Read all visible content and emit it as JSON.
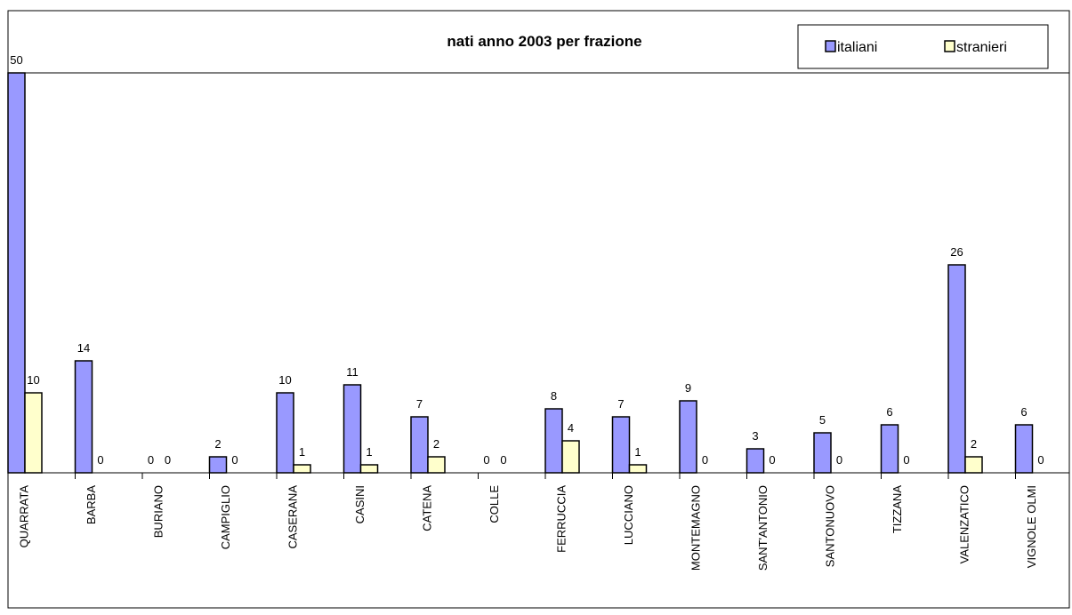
{
  "chart_data": {
    "type": "bar",
    "title": "nati anno 2003 per frazione",
    "xlabel": "",
    "ylabel": "",
    "categories": [
      "QUARRATA",
      "BARBA",
      "BURIANO",
      "CAMPIGLIO",
      "CASERANA",
      "CASINI",
      "CATENA",
      "COLLE",
      "FERRUCCIA",
      "LUCCIANO",
      "MONTEMAGNO",
      "SANT'ANTONIO",
      "SANTONUOVO",
      "TIZZANA",
      "VALENZATICO",
      "VIGNOLE OLMI"
    ],
    "series": [
      {
        "name": "italiani",
        "color": "#9999ff",
        "values": [
          50,
          14,
          0,
          2,
          10,
          11,
          7,
          0,
          8,
          7,
          9,
          3,
          5,
          6,
          26,
          6
        ]
      },
      {
        "name": "stranieri",
        "color": "#ffffcc",
        "values": [
          10,
          0,
          0,
          0,
          1,
          1,
          2,
          0,
          4,
          1,
          0,
          0,
          0,
          0,
          2,
          0
        ]
      }
    ],
    "ylim": [
      0,
      50
    ],
    "grid": false,
    "legend": "top-right",
    "data_labels": true
  }
}
